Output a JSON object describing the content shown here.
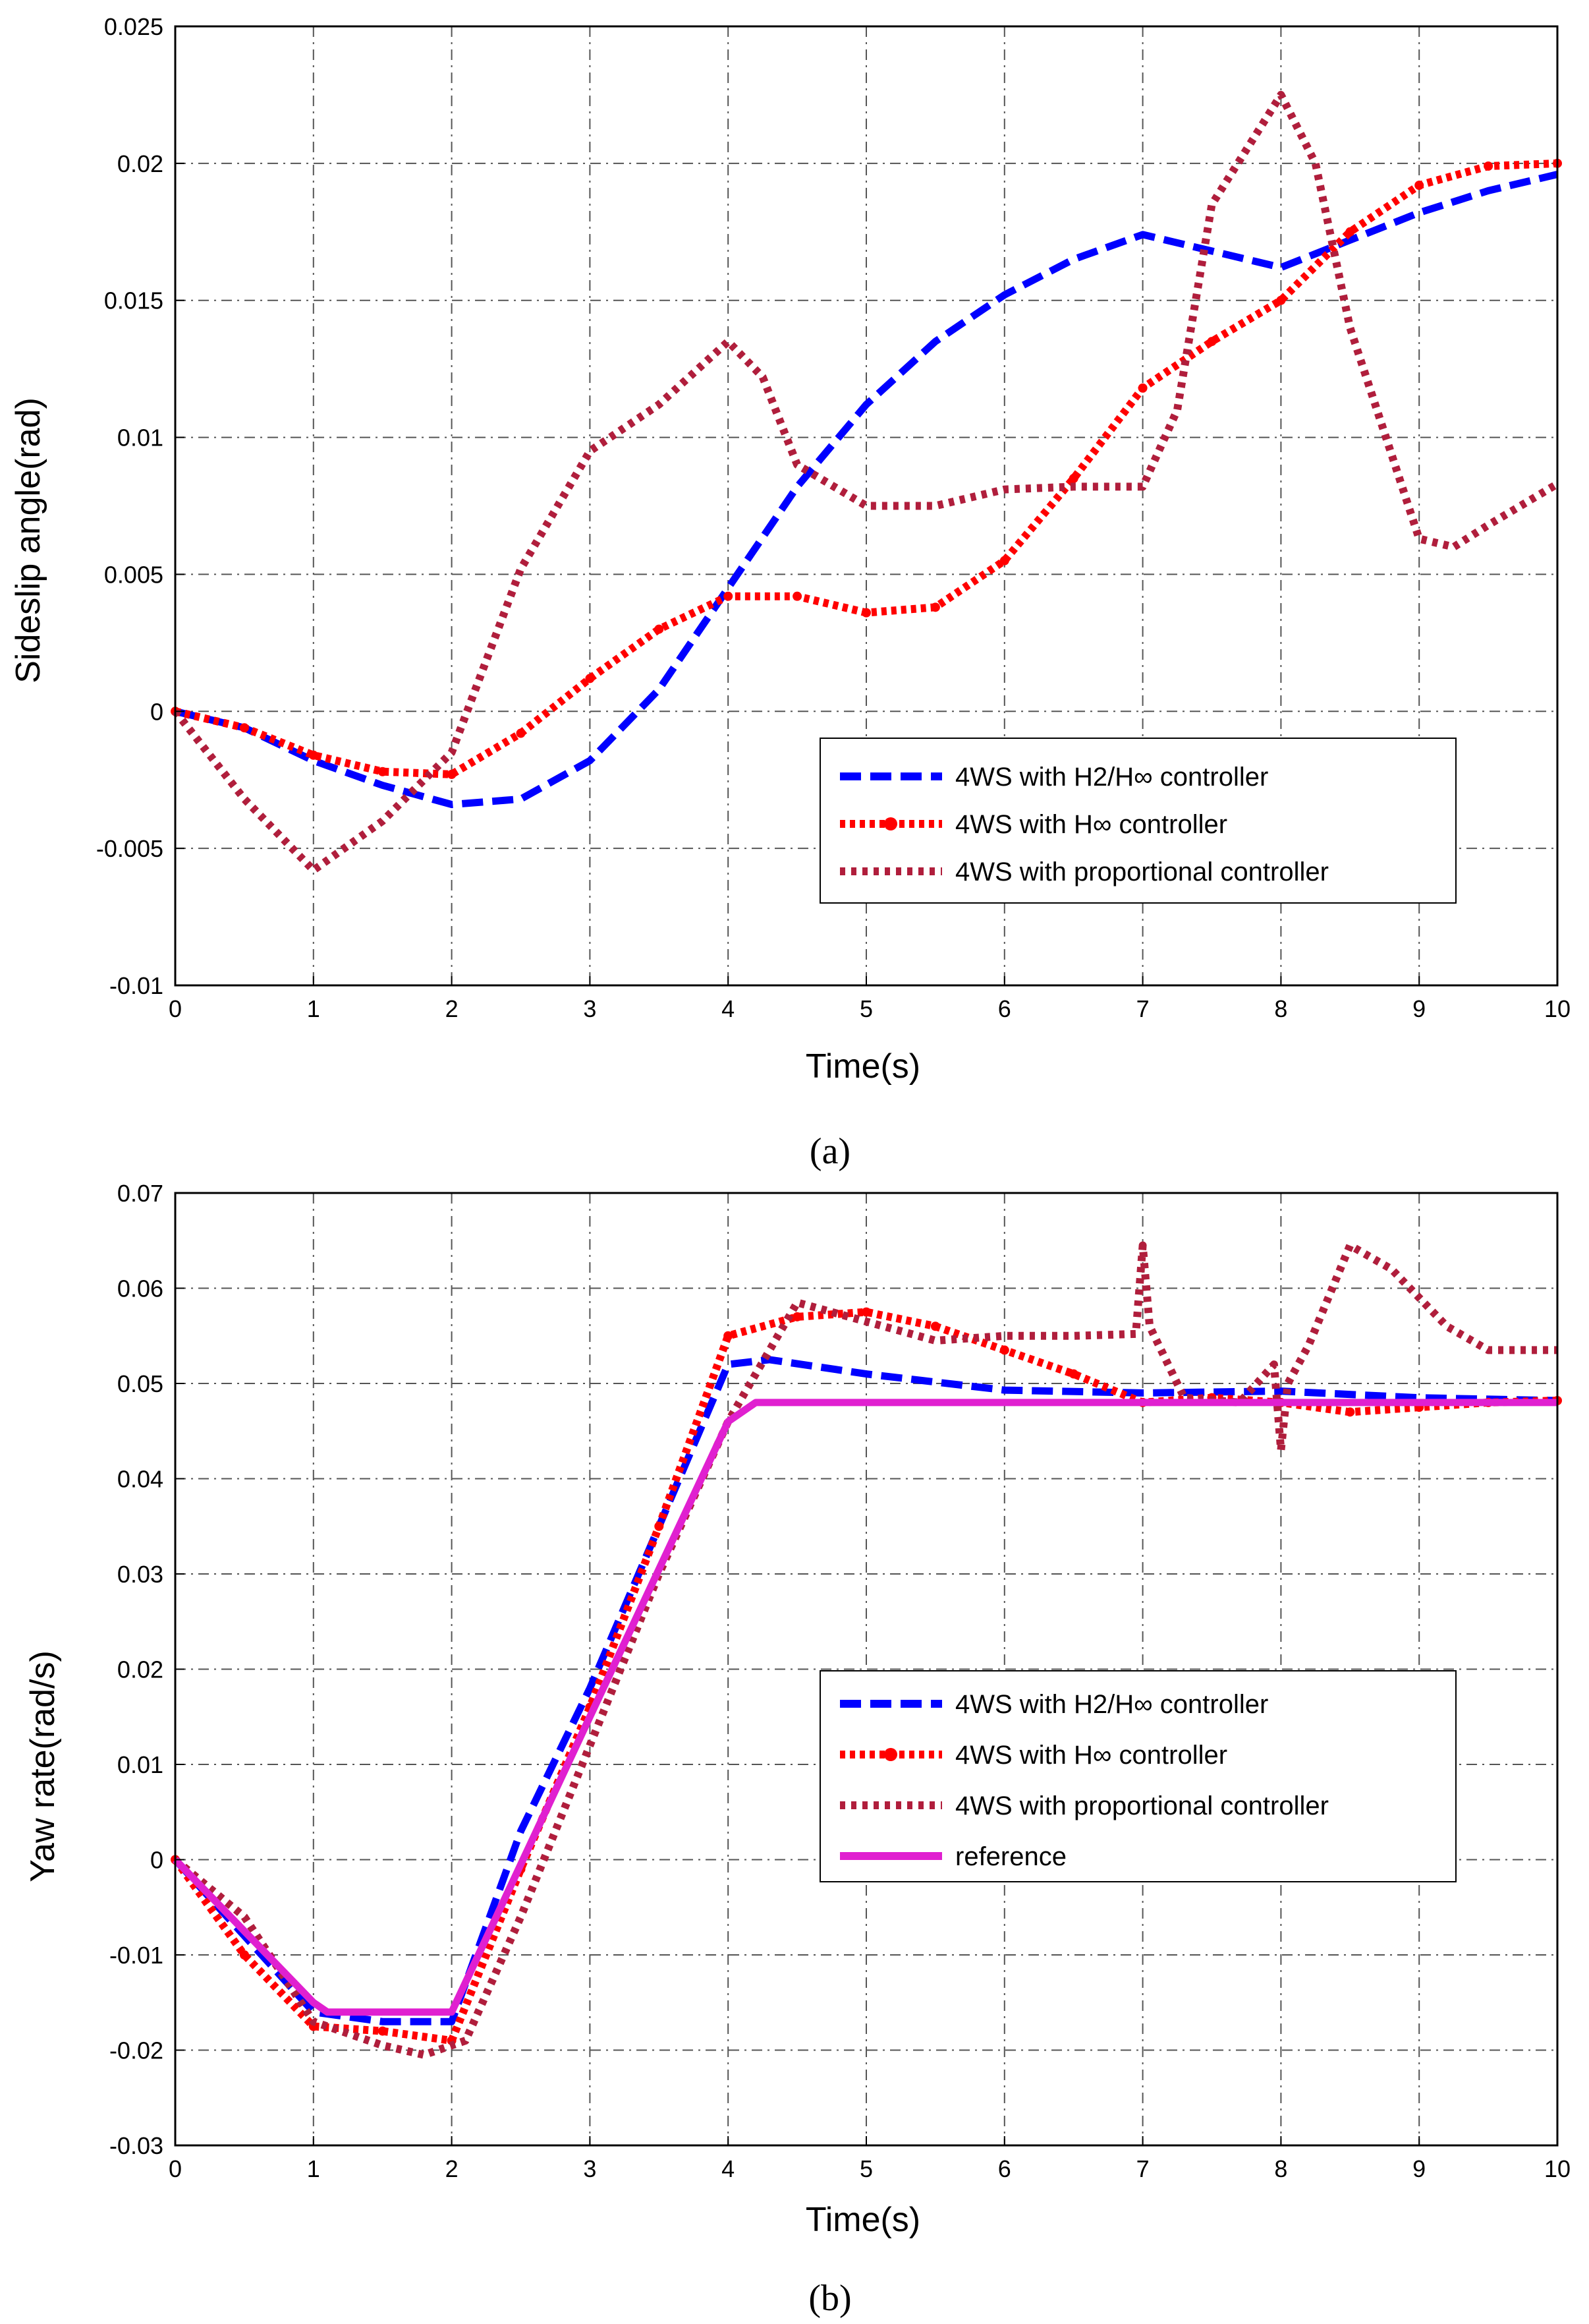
{
  "chart_data": [
    {
      "type": "line",
      "caption": "(a)",
      "xlabel": "Time(s)",
      "ylabel": "Sideslip angle(rad)",
      "xlim": [
        0,
        10
      ],
      "ylim": [
        -0.01,
        0.025
      ],
      "xticks": [
        0,
        1,
        2,
        3,
        4,
        5,
        6,
        7,
        8,
        9,
        10
      ],
      "yticks": [
        -0.01,
        -0.005,
        0,
        0.005,
        0.01,
        0.015,
        0.02,
        0.025
      ],
      "ytick_labels": [
        "-0.01",
        "-0.005",
        "0",
        "0.005",
        "0.01",
        "0.015",
        "0.02",
        "0.025"
      ],
      "grid": true,
      "legend_position": "bottom-right",
      "series": [
        {
          "name": "4WS with H2/H∞ controller",
          "color": "#0000ff",
          "style": "dash",
          "x": [
            0,
            0.5,
            1,
            1.5,
            2,
            2.5,
            3,
            3.5,
            4,
            4.5,
            5,
            5.5,
            6,
            6.5,
            7,
            7.5,
            8,
            8.5,
            9,
            9.5,
            10
          ],
          "y": [
            0,
            -0.0006,
            -0.0018,
            -0.0027,
            -0.0034,
            -0.0032,
            -0.0018,
            0.0008,
            0.0045,
            0.0082,
            0.0112,
            0.0135,
            0.0152,
            0.0165,
            0.0174,
            0.0168,
            0.0162,
            0.0172,
            0.0182,
            0.019,
            0.0196
          ]
        },
        {
          "name": "4WS with H∞ controller",
          "color": "#ff0000",
          "style": "dot-marker",
          "x": [
            0,
            0.5,
            1,
            1.5,
            2,
            2.5,
            3,
            3.5,
            4,
            4.5,
            5,
            5.5,
            6,
            6.5,
            7,
            7.5,
            8,
            8.5,
            9,
            9.5,
            10
          ],
          "y": [
            0,
            -0.0006,
            -0.0016,
            -0.0022,
            -0.0023,
            -0.0008,
            0.0012,
            0.003,
            0.0042,
            0.0042,
            0.0036,
            0.0038,
            0.0055,
            0.0085,
            0.0118,
            0.0135,
            0.015,
            0.0175,
            0.0192,
            0.0199,
            0.02
          ]
        },
        {
          "name": "4WS with proportional controller",
          "color": "#b01e3c",
          "style": "dot",
          "x": [
            0,
            0.5,
            1,
            1.5,
            2,
            2.5,
            3,
            3.5,
            4,
            4.25,
            4.5,
            5,
            5.5,
            6,
            6.5,
            7,
            7.25,
            7.5,
            8,
            8.25,
            8.5,
            9,
            9.25,
            9.5,
            10
          ],
          "y": [
            0,
            -0.0032,
            -0.0058,
            -0.004,
            -0.0015,
            0.0052,
            0.0095,
            0.0112,
            0.0135,
            0.0122,
            0.009,
            0.0075,
            0.0075,
            0.0081,
            0.0082,
            0.0082,
            0.011,
            0.0185,
            0.0225,
            0.02,
            0.014,
            0.0063,
            0.006,
            0.0068,
            0.0083
          ]
        }
      ]
    },
    {
      "type": "line",
      "caption": "(b)",
      "xlabel": "Time(s)",
      "ylabel": "Yaw rate(rad/s)",
      "xlim": [
        0,
        10
      ],
      "ylim": [
        -0.03,
        0.07
      ],
      "xticks": [
        0,
        1,
        2,
        3,
        4,
        5,
        6,
        7,
        8,
        9,
        10
      ],
      "yticks": [
        -0.03,
        -0.02,
        -0.01,
        0,
        0.01,
        0.02,
        0.03,
        0.04,
        0.05,
        0.06,
        0.07
      ],
      "ytick_labels": [
        "-0.03",
        "-0.02",
        "-0.01",
        "0",
        "0.01",
        "0.02",
        "0.03",
        "0.04",
        "0.05",
        "0.06",
        "0.07"
      ],
      "grid": true,
      "legend_position": "center-right",
      "series": [
        {
          "name": "4WS with H2/H∞ controller",
          "color": "#0000ff",
          "style": "dash",
          "x": [
            0,
            0.5,
            1,
            1.5,
            2,
            2.5,
            3,
            3.5,
            4,
            4.3,
            5,
            6,
            7,
            8,
            9,
            10
          ],
          "y": [
            0,
            -0.008,
            -0.016,
            -0.017,
            -0.017,
            0.003,
            0.018,
            0.035,
            0.052,
            0.0525,
            0.051,
            0.0493,
            0.049,
            0.0492,
            0.0485,
            0.0482
          ]
        },
        {
          "name": "4WS with H∞ controller",
          "color": "#ff0000",
          "style": "dot-marker",
          "x": [
            0,
            0.5,
            1,
            1.5,
            2,
            2.5,
            3,
            3.5,
            4,
            4.5,
            5,
            5.5,
            6,
            6.5,
            7,
            7.5,
            8,
            8.5,
            9,
            9.5,
            10
          ],
          "y": [
            0,
            -0.01,
            -0.0175,
            -0.018,
            -0.019,
            -0.001,
            0.016,
            0.035,
            0.055,
            0.057,
            0.0575,
            0.056,
            0.0535,
            0.051,
            0.048,
            0.0485,
            0.048,
            0.047,
            0.0475,
            0.048,
            0.0482
          ]
        },
        {
          "name": "4WS with proportional controller",
          "color": "#b01e3c",
          "style": "dot",
          "x": [
            0,
            0.5,
            1,
            1.5,
            1.8,
            2.1,
            2.5,
            3,
            3.5,
            4,
            4.5,
            5,
            5.5,
            6,
            6.5,
            6.95,
            7,
            7.05,
            7.3,
            7.7,
            7.95,
            8,
            8.05,
            8.2,
            8.5,
            8.8,
            9.2,
            9.5,
            10
          ],
          "y": [
            0,
            -0.006,
            -0.017,
            -0.0195,
            -0.0205,
            -0.019,
            -0.006,
            0.012,
            0.03,
            0.046,
            0.0585,
            0.0565,
            0.0545,
            0.055,
            0.055,
            0.0552,
            0.0645,
            0.056,
            0.0485,
            0.048,
            0.052,
            0.043,
            0.05,
            0.054,
            0.0645,
            0.062,
            0.056,
            0.0535,
            0.0535
          ]
        },
        {
          "name": "reference",
          "color": "#e020d0",
          "style": "solid",
          "x": [
            0,
            1,
            1.1,
            2,
            4,
            4.2,
            10
          ],
          "y": [
            0,
            -0.015,
            -0.016,
            -0.016,
            0.046,
            0.048,
            0.048
          ]
        }
      ]
    }
  ]
}
